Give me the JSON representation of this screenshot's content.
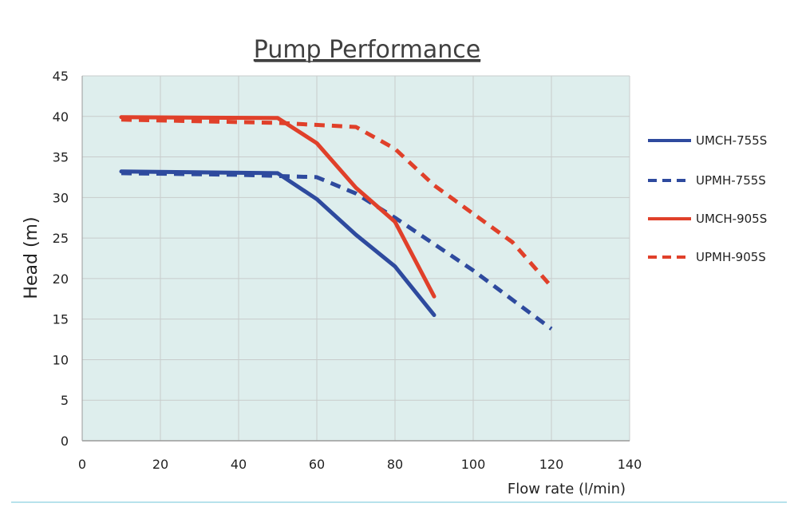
{
  "chart_data": {
    "type": "line",
    "title": "Pump Performance",
    "xlabel": "Flow rate (l/min)",
    "ylabel": "Head (m)",
    "xlim": [
      0,
      140
    ],
    "ylim": [
      0,
      45
    ],
    "x_ticks": [
      "0",
      "20",
      "40",
      "60",
      "80",
      "100",
      "120",
      "140"
    ],
    "y_ticks": [
      "0",
      "5",
      "10",
      "15",
      "20",
      "25",
      "30",
      "35",
      "40",
      "45"
    ],
    "grid": true,
    "plot_background": "#deeeed",
    "legend_position": "right",
    "series": [
      {
        "name": "UMCH-755S",
        "color": "#2e4a9e",
        "dash": "solid",
        "points": [
          [
            10,
            33.2
          ],
          [
            50,
            33.0
          ],
          [
            60,
            29.8
          ],
          [
            70,
            25.4
          ],
          [
            80,
            21.5
          ],
          [
            90,
            15.5
          ]
        ]
      },
      {
        "name": "UPMH-755S",
        "color": "#2e4a9e",
        "dash": "dashed",
        "points": [
          [
            10,
            33.0
          ],
          [
            40,
            32.8
          ],
          [
            60,
            32.5
          ],
          [
            70,
            30.5
          ],
          [
            80,
            27.5
          ],
          [
            100,
            21.0
          ],
          [
            120,
            13.8
          ]
        ]
      },
      {
        "name": "UMCH-905S",
        "color": "#e0402a",
        "dash": "solid",
        "points": [
          [
            10,
            39.9
          ],
          [
            50,
            39.8
          ],
          [
            60,
            36.7
          ],
          [
            70,
            31.2
          ],
          [
            80,
            27.0
          ],
          [
            90,
            17.8
          ]
        ]
      },
      {
        "name": "UPMH-905S",
        "color": "#e0402a",
        "dash": "dashed",
        "points": [
          [
            10,
            39.6
          ],
          [
            50,
            39.2
          ],
          [
            70,
            38.7
          ],
          [
            80,
            36.0
          ],
          [
            90,
            31.5
          ],
          [
            110,
            24.5
          ],
          [
            120,
            19.0
          ]
        ]
      }
    ]
  }
}
